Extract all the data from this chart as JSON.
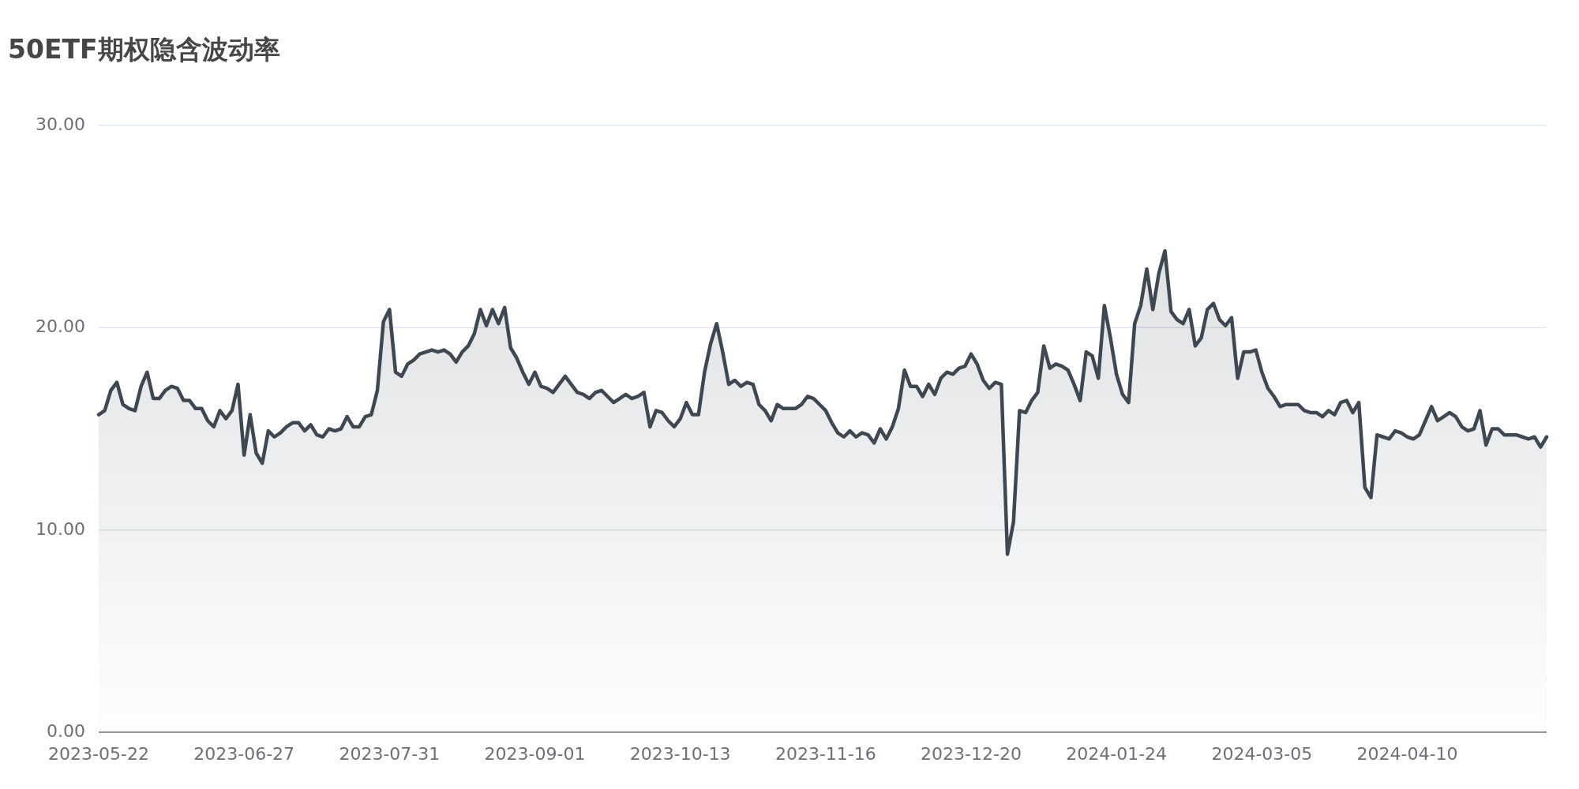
{
  "chart_data": {
    "type": "area",
    "title": "50ETF期权隐含波动率",
    "categories": [
      "2023-05-22",
      null,
      null,
      null,
      null,
      null,
      null,
      null,
      null,
      null,
      null,
      null,
      null,
      null,
      null,
      null,
      null,
      null,
      null,
      null,
      null,
      null,
      null,
      null,
      "2023-06-27",
      null,
      null,
      null,
      null,
      null,
      null,
      null,
      null,
      null,
      null,
      null,
      null,
      null,
      null,
      null,
      null,
      null,
      null,
      null,
      null,
      null,
      null,
      null,
      "2023-07-31",
      null,
      null,
      null,
      null,
      null,
      null,
      null,
      null,
      null,
      null,
      null,
      null,
      null,
      null,
      null,
      null,
      null,
      null,
      null,
      null,
      null,
      null,
      null,
      "2023-09-01",
      null,
      null,
      null,
      null,
      null,
      null,
      null,
      null,
      null,
      null,
      null,
      null,
      null,
      null,
      null,
      null,
      null,
      null,
      null,
      null,
      null,
      null,
      null,
      "2023-10-13",
      null,
      null,
      null,
      null,
      null,
      null,
      null,
      null,
      null,
      null,
      null,
      null,
      null,
      null,
      null,
      null,
      null,
      null,
      null,
      null,
      null,
      null,
      null,
      "2023-11-16",
      null,
      null,
      null,
      null,
      null,
      null,
      null,
      null,
      null,
      null,
      null,
      null,
      null,
      null,
      null,
      null,
      null,
      null,
      null,
      null,
      null,
      null,
      null,
      "2023-12-20",
      null,
      null,
      null,
      null,
      null,
      null,
      null,
      null,
      null,
      null,
      null,
      null,
      null,
      null,
      null,
      null,
      null,
      null,
      null,
      null,
      null,
      null,
      null,
      "2024-01-24",
      null,
      null,
      null,
      null,
      null,
      null,
      null,
      null,
      null,
      null,
      null,
      null,
      null,
      null,
      null,
      null,
      null,
      null,
      null,
      null,
      null,
      null,
      null,
      "2024-03-05",
      null,
      null,
      null,
      null,
      null,
      null,
      null,
      null,
      null,
      null,
      null,
      null,
      null,
      null,
      null,
      null,
      null,
      null,
      null,
      null,
      null,
      null,
      null,
      "2024-04-10",
      null,
      null,
      null,
      null,
      null,
      null,
      null,
      null,
      null,
      null,
      null,
      null,
      null,
      null,
      null,
      null,
      null,
      null,
      null,
      null,
      null,
      null,
      null
    ],
    "series": [
      {
        "color": "#3d4852",
        "values": [
          15.7,
          15.9,
          16.9,
          17.3,
          16.2,
          16.0,
          15.9,
          17.1,
          17.8,
          16.5,
          16.5,
          16.9,
          17.1,
          17.0,
          16.4,
          16.4,
          16.0,
          16.0,
          15.4,
          15.1,
          15.9,
          15.5,
          15.9,
          17.2,
          13.7,
          15.7,
          13.8,
          13.3,
          14.9,
          14.6,
          14.8,
          15.1,
          15.3,
          15.3,
          14.9,
          15.2,
          14.7,
          14.6,
          15.0,
          14.9,
          15.0,
          15.6,
          15.1,
          15.1,
          15.6,
          15.7,
          16.9,
          20.3,
          20.9,
          17.8,
          17.6,
          18.2,
          18.4,
          18.7,
          18.8,
          18.9,
          18.8,
          18.9,
          18.7,
          18.3,
          18.8,
          19.1,
          19.7,
          20.9,
          20.1,
          20.9,
          20.2,
          21.0,
          19.0,
          18.5,
          17.8,
          17.2,
          17.8,
          17.1,
          17.0,
          16.8,
          17.2,
          17.6,
          17.2,
          16.8,
          16.7,
          16.5,
          16.8,
          16.9,
          16.6,
          16.3,
          16.5,
          16.7,
          16.5,
          16.6,
          16.8,
          15.1,
          15.9,
          15.8,
          15.4,
          15.1,
          15.5,
          16.3,
          15.7,
          15.7,
          17.8,
          19.2,
          20.2,
          18.8,
          17.2,
          17.4,
          17.1,
          17.3,
          17.2,
          16.2,
          15.9,
          15.4,
          16.2,
          16.0,
          16.0,
          16.0,
          16.2,
          16.6,
          16.5,
          16.2,
          15.9,
          15.3,
          14.8,
          14.6,
          14.9,
          14.6,
          14.8,
          14.7,
          14.3,
          15.0,
          14.5,
          15.1,
          16.0,
          17.9,
          17.1,
          17.1,
          16.6,
          17.2,
          16.7,
          17.5,
          17.8,
          17.7,
          18.0,
          18.1,
          18.7,
          18.2,
          17.4,
          17.0,
          17.3,
          17.2,
          8.8,
          10.4,
          15.9,
          15.8,
          16.4,
          16.8,
          19.1,
          18.0,
          18.2,
          18.1,
          17.9,
          17.2,
          16.4,
          18.8,
          18.6,
          17.5,
          21.1,
          19.5,
          17.7,
          16.7,
          16.3,
          20.2,
          21.1,
          22.9,
          20.9,
          22.7,
          23.8,
          20.8,
          20.4,
          20.2,
          20.9,
          19.1,
          19.5,
          20.9,
          21.2,
          20.4,
          20.1,
          20.5,
          17.5,
          18.8,
          18.8,
          18.9,
          17.8,
          17.0,
          16.6,
          16.1,
          16.2,
          16.2,
          16.2,
          15.9,
          15.8,
          15.8,
          15.6,
          15.9,
          15.7,
          16.3,
          16.4,
          15.8,
          16.3,
          12.1,
          11.6,
          14.7,
          14.6,
          14.5,
          14.9,
          14.8,
          14.6,
          14.5,
          14.7,
          15.4,
          16.1,
          15.4,
          15.6,
          15.8,
          15.6,
          15.1,
          14.9,
          15.0,
          15.9,
          14.2,
          15.0,
          15.0,
          14.7,
          14.7,
          14.7,
          14.6,
          14.5,
          14.6,
          14.1,
          14.6
        ]
      }
    ],
    "ylim": [
      0,
      30
    ],
    "yticks": [
      {
        "value": 0,
        "label": "0.00"
      },
      {
        "value": 10,
        "label": "10.00"
      },
      {
        "value": 20,
        "label": "20.00"
      },
      {
        "value": 30,
        "label": "30.00"
      }
    ],
    "grid": "y"
  }
}
